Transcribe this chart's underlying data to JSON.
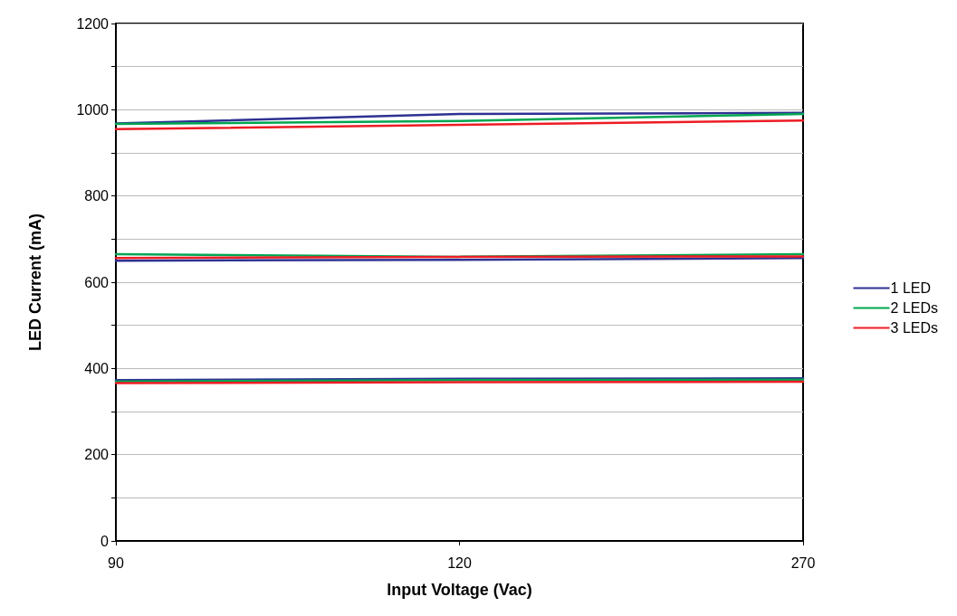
{
  "chart_data": {
    "type": "line",
    "xlabel": "Input Voltage (Vac)",
    "ylabel": "LED Current (mA)",
    "categories": [
      "90",
      "120",
      "270"
    ],
    "ylim": [
      0,
      1200
    ],
    "yticks": [
      0,
      {
        "value": 100,
        "label": null
      },
      200,
      {
        "value": 300,
        "label": null
      },
      400,
      {
        "value": 500,
        "label": null
      },
      600,
      {
        "value": 700,
        "label": null
      },
      800,
      {
        "value": 900,
        "label": null
      },
      1000,
      {
        "value": 1100,
        "label": null
      },
      1200
    ],
    "grid": "y",
    "legend": "right",
    "marker": "none",
    "line_style": "solid",
    "series": [
      {
        "name": "1 LED",
        "color": "#2e3192",
        "values": [
          968,
          990,
          993
        ]
      },
      {
        "name": "2 LEDs",
        "color": "#00a651",
        "values": [
          967,
          974,
          990
        ]
      },
      {
        "name": "3 LEDs",
        "color": "#ed1c24",
        "values": [
          955,
          965,
          975
        ]
      },
      {
        "color": "#2e3192",
        "values": [
          650,
          652,
          656
        ]
      },
      {
        "color": "#00a651",
        "values": [
          665,
          659,
          665
        ]
      },
      {
        "color": "#ed1c24",
        "values": [
          656,
          659,
          660
        ]
      },
      {
        "color": "#2e3192",
        "values": [
          373,
          376,
          377
        ]
      },
      {
        "color": "#00a651",
        "values": [
          370,
          373,
          374
        ]
      },
      {
        "color": "#ed1c24",
        "values": [
          366,
          368,
          369
        ]
      }
    ]
  }
}
